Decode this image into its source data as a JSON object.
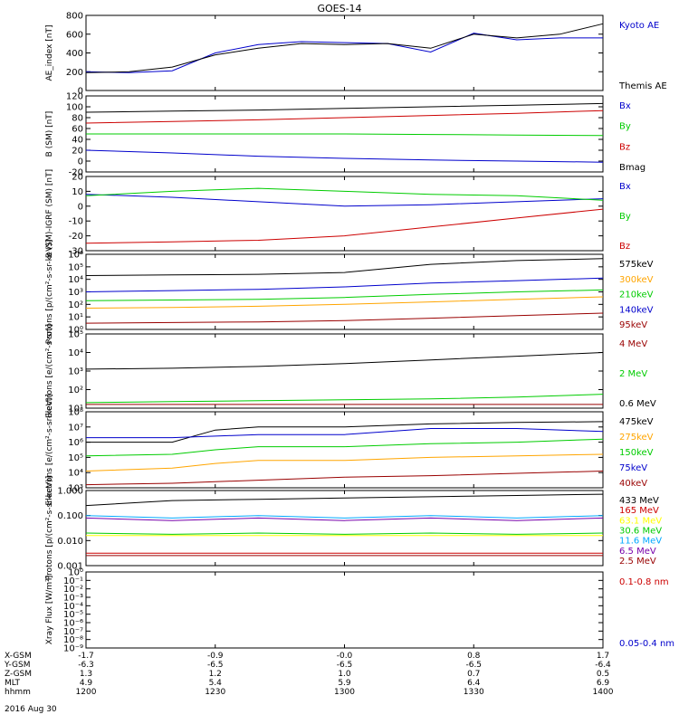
{
  "title": "GOES-14",
  "date_label": "2016 Aug 30",
  "colors": {
    "black": "#000000",
    "blue": "#0000cc",
    "green": "#00cc00",
    "red": "#cc0000",
    "orange": "#ffa500",
    "darkred": "#990000",
    "yellow": "#ffff00",
    "cyan": "#00a8ff",
    "purple": "#7700aa"
  },
  "chart_data": [
    {
      "type": "line",
      "ylabel": "AE_index [nT]",
      "ylim": [
        0,
        800
      ],
      "yticks": [
        "0",
        "200",
        "400",
        "600",
        "800"
      ],
      "x": [
        0,
        10,
        20,
        30,
        40,
        50,
        60,
        70,
        80,
        90,
        100,
        110,
        120
      ],
      "series": [
        {
          "name": "Kyoto AE",
          "color": "blue",
          "values": [
            200,
            190,
            210,
            400,
            490,
            520,
            510,
            500,
            410,
            610,
            540,
            560,
            560
          ]
        },
        {
          "name": "Themis AE",
          "color": "black",
          "values": [
            190,
            200,
            250,
            380,
            450,
            500,
            490,
            500,
            450,
            600,
            560,
            600,
            710
          ]
        }
      ]
    },
    {
      "type": "line",
      "ylabel": "B (SM) [nT]",
      "ylim": [
        -20,
        120
      ],
      "yticks": [
        "-20",
        "0",
        "20",
        "40",
        "60",
        "80",
        "100",
        "120"
      ],
      "x": [
        0,
        20,
        40,
        60,
        80,
        100,
        120
      ],
      "series": [
        {
          "name": "Bx",
          "color": "blue",
          "values": [
            20,
            15,
            9,
            5,
            2,
            0,
            -2
          ]
        },
        {
          "name": "By",
          "color": "green",
          "values": [
            50,
            50,
            50,
            50,
            49,
            48,
            47
          ]
        },
        {
          "name": "Bz",
          "color": "red",
          "values": [
            70,
            73,
            76,
            80,
            84,
            88,
            93
          ]
        },
        {
          "name": "Bmag",
          "color": "black",
          "values": [
            90,
            92,
            94,
            97,
            100,
            103,
            106
          ]
        }
      ]
    },
    {
      "type": "line",
      "ylabel": "B (SM)-IGRF (SM) [nT]",
      "ylim": [
        -30,
        20
      ],
      "yticks": [
        "-30",
        "-20",
        "-10",
        "0",
        "10",
        "20"
      ],
      "x": [
        0,
        20,
        40,
        60,
        80,
        100,
        120
      ],
      "series": [
        {
          "name": "Bx",
          "color": "blue",
          "values": [
            8,
            6,
            3,
            0,
            1,
            3,
            5
          ]
        },
        {
          "name": "By",
          "color": "green",
          "values": [
            7,
            10,
            12,
            10,
            8,
            7,
            4
          ]
        },
        {
          "name": "Bz",
          "color": "red",
          "values": [
            -25,
            -24,
            -23,
            -20,
            -14,
            -8,
            -2
          ]
        }
      ]
    },
    {
      "type": "line",
      "ylabel": "Protons [p/(cm²-s-sr-keV)]",
      "log": true,
      "ylim": [
        0,
        6
      ],
      "yticks": [
        "10⁰",
        "10¹",
        "10²",
        "10³",
        "10⁴",
        "10⁵",
        "10⁶"
      ],
      "x": [
        0,
        20,
        40,
        60,
        80,
        100,
        120
      ],
      "series": [
        {
          "name": "575keV",
          "color": "black",
          "values": [
            4.3,
            4.35,
            4.4,
            4.55,
            5.2,
            5.5,
            5.65
          ]
        },
        {
          "name": "300keV",
          "color": "orange",
          "values": [
            1.7,
            1.75,
            1.85,
            2.0,
            2.2,
            2.4,
            2.6
          ]
        },
        {
          "name": "210keV",
          "color": "green",
          "values": [
            2.3,
            2.35,
            2.4,
            2.55,
            2.8,
            3.0,
            3.15
          ]
        },
        {
          "name": "140keV",
          "color": "blue",
          "values": [
            3.0,
            3.1,
            3.2,
            3.4,
            3.7,
            3.9,
            4.1
          ]
        },
        {
          "name": "95keV",
          "color": "darkred",
          "values": [
            0.5,
            0.55,
            0.6,
            0.7,
            0.9,
            1.1,
            1.3
          ]
        }
      ]
    },
    {
      "type": "line",
      "ylabel": "Electrons [e/(cm²-s-sr)]",
      "log": true,
      "ylim": [
        1,
        5
      ],
      "yticks": [
        "10¹",
        "10²",
        "10³",
        "10⁴",
        "10⁵"
      ],
      "x": [
        0,
        20,
        40,
        60,
        80,
        100,
        120
      ],
      "series": [
        {
          "name": "4 MeV",
          "color": "darkred",
          "values": [
            1.2,
            1.2,
            1.2,
            1.2,
            1.2,
            1.2,
            1.2
          ]
        },
        {
          "name": "2 MeV",
          "color": "green",
          "values": [
            1.3,
            1.35,
            1.4,
            1.45,
            1.5,
            1.6,
            1.75
          ]
        },
        {
          "name": "0.6 MeV",
          "color": "black",
          "values": [
            3.1,
            3.15,
            3.25,
            3.4,
            3.6,
            3.8,
            4.0
          ]
        }
      ]
    },
    {
      "type": "line",
      "ylabel": "Electrons [e/(cm²-s-sr-keV)]",
      "log": true,
      "ylim": [
        3,
        8
      ],
      "yticks": [
        "10³",
        "10⁴",
        "10⁵",
        "10⁶",
        "10⁷",
        "10⁸"
      ],
      "x": [
        0,
        20,
        30,
        40,
        60,
        80,
        100,
        120
      ],
      "series": [
        {
          "name": "475keV",
          "color": "black",
          "values": [
            6.0,
            6.0,
            6.8,
            7.0,
            7.0,
            7.2,
            7.3,
            7.35
          ]
        },
        {
          "name": "275keV",
          "color": "orange",
          "values": [
            4.1,
            4.3,
            4.6,
            4.8,
            4.8,
            5.0,
            5.1,
            5.2
          ]
        },
        {
          "name": "150keV",
          "color": "green",
          "values": [
            5.1,
            5.2,
            5.5,
            5.7,
            5.7,
            5.9,
            6.0,
            6.2
          ]
        },
        {
          "name": "75keV",
          "color": "blue",
          "values": [
            6.3,
            6.3,
            6.4,
            6.5,
            6.5,
            6.9,
            6.9,
            6.7
          ]
        },
        {
          "name": "40keV",
          "color": "darkred",
          "values": [
            3.2,
            3.3,
            3.4,
            3.5,
            3.7,
            3.8,
            3.95,
            4.1
          ]
        }
      ]
    },
    {
      "type": "line",
      "ylabel": "Protons [p/(cm²-s-sr-keV)]",
      "log": true,
      "ylim": [
        -3,
        0
      ],
      "yticks": [
        "0.001",
        "0.010",
        "0.100",
        "1.000"
      ],
      "x": [
        0,
        20,
        40,
        60,
        80,
        100,
        120
      ],
      "series": [
        {
          "name": "433 MeV",
          "color": "black",
          "values": [
            -0.6,
            -0.4,
            -0.35,
            -0.3,
            -0.25,
            -0.2,
            -0.15
          ]
        },
        {
          "name": "165 MeV",
          "color": "red",
          "values": [
            -2.5,
            -2.5,
            -2.5,
            -2.5,
            -2.5,
            -2.5,
            -2.5
          ]
        },
        {
          "name": "63.1 MeV",
          "color": "yellow",
          "values": [
            -1.8,
            -1.8,
            -1.8,
            -1.8,
            -1.8,
            -1.8,
            -1.8
          ]
        },
        {
          "name": "30.6 MeV",
          "color": "green",
          "values": [
            -1.7,
            -1.75,
            -1.7,
            -1.75,
            -1.7,
            -1.75,
            -1.7
          ]
        },
        {
          "name": "11.6 MeV",
          "color": "cyan",
          "values": [
            -1.0,
            -1.1,
            -1.0,
            -1.1,
            -1.0,
            -1.1,
            -1.0
          ]
        },
        {
          "name": "6.5 MeV",
          "color": "purple",
          "values": [
            -1.1,
            -1.2,
            -1.1,
            -1.2,
            -1.1,
            -1.2,
            -1.1
          ]
        },
        {
          "name": "2.5 MeV",
          "color": "darkred",
          "values": [
            -2.6,
            -2.6,
            -2.6,
            -2.6,
            -2.6,
            -2.6,
            -2.6
          ]
        }
      ]
    },
    {
      "type": "line",
      "ylabel": "Xray Flux [W/m²]",
      "log": true,
      "ylim": [
        -9,
        0
      ],
      "yticks": [
        "10⁻⁹",
        "10⁻⁸",
        "10⁻⁷",
        "10⁻⁶",
        "10⁻⁵",
        "10⁻⁴",
        "10⁻³",
        "10⁻²",
        "10⁻¹",
        "10⁰"
      ],
      "x": [],
      "series": [
        {
          "name": "0.1-0.8 nm",
          "color": "red",
          "values": []
        },
        {
          "name": "0.05-0.4 nm",
          "color": "blue",
          "values": []
        }
      ]
    }
  ],
  "xaxis": {
    "ticks": [
      0,
      30,
      60,
      90,
      120
    ],
    "rows": [
      {
        "label": "X-GSM",
        "values": [
          "-1.7",
          "-0.9",
          "-0.0",
          "0.8",
          "1.7"
        ]
      },
      {
        "label": "Y-GSM",
        "values": [
          "-6.3",
          "-6.5",
          "-6.5",
          "-6.5",
          "-6.4"
        ]
      },
      {
        "label": "Z-GSM",
        "values": [
          "1.3",
          "1.2",
          "1.0",
          "0.7",
          "0.5"
        ]
      },
      {
        "label": "MLT",
        "values": [
          "4.9",
          "5.4",
          "5.9",
          "6.4",
          "6.9"
        ]
      },
      {
        "label": "hhmm",
        "values": [
          "1200",
          "1230",
          "1300",
          "1330",
          "1400"
        ]
      }
    ]
  }
}
